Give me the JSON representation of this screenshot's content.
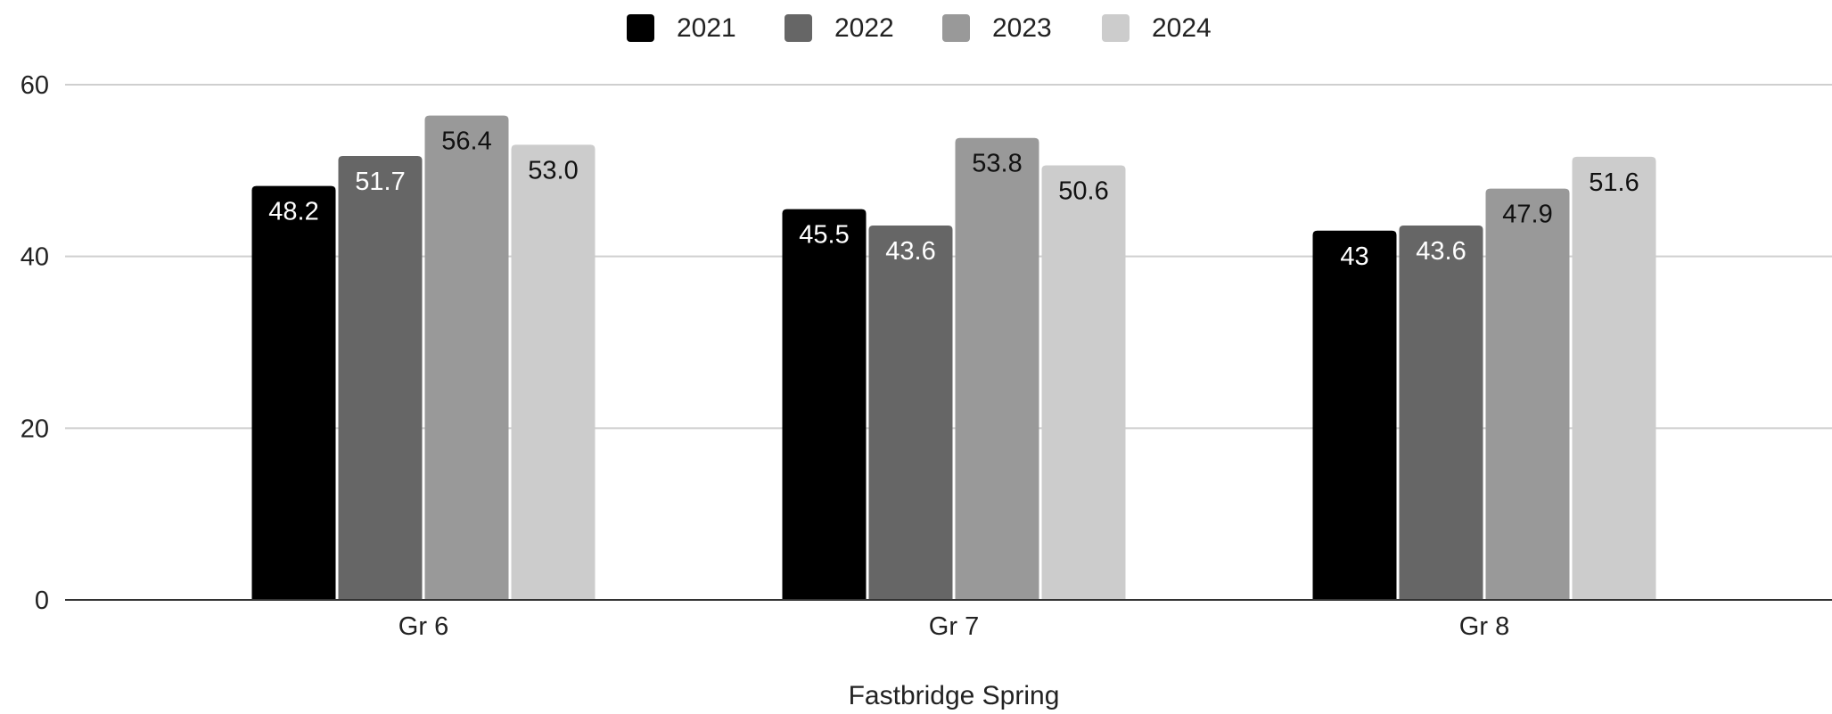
{
  "chart_data": {
    "type": "bar",
    "title": "",
    "xlabel": "Fastbridge Spring",
    "ylabel": "",
    "ylim": [
      0,
      60
    ],
    "yticks": [
      0,
      20,
      40,
      60
    ],
    "grid": true,
    "legend_position": "top",
    "categories": [
      "Gr 6",
      "Gr 7",
      "Gr 8"
    ],
    "series": [
      {
        "name": "2021",
        "color": "#000000",
        "label_color": "#ffffff",
        "values": [
          48.2,
          45.5,
          43
        ],
        "labels": [
          "48.2",
          "45.5",
          "43"
        ]
      },
      {
        "name": "2022",
        "color": "#666666",
        "label_color": "#ffffff",
        "values": [
          51.7,
          43.6,
          43.6
        ],
        "labels": [
          "51.7",
          "43.6",
          "43.6"
        ]
      },
      {
        "name": "2023",
        "color": "#999999",
        "label_color": "#111111",
        "values": [
          56.4,
          53.8,
          47.9
        ],
        "labels": [
          "56.4",
          "53.8",
          "47.9"
        ]
      },
      {
        "name": "2024",
        "color": "#cccccc",
        "label_color": "#111111",
        "values": [
          53.0,
          50.6,
          51.6
        ],
        "labels": [
          "53.0",
          "50.6",
          "51.6"
        ]
      }
    ]
  }
}
